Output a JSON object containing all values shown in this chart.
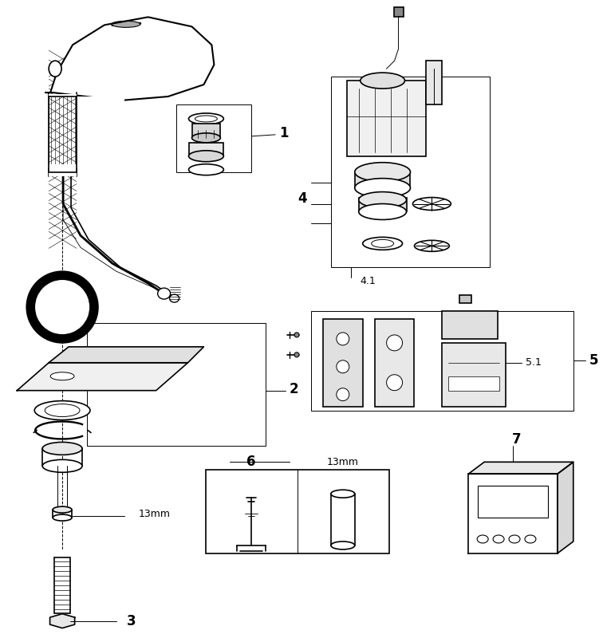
{
  "bg_color": "#ffffff",
  "lc": "#000000",
  "lw": 1.2,
  "tlw": 0.7,
  "fig_w": 7.56,
  "fig_h": 8.0,
  "dpi": 100
}
